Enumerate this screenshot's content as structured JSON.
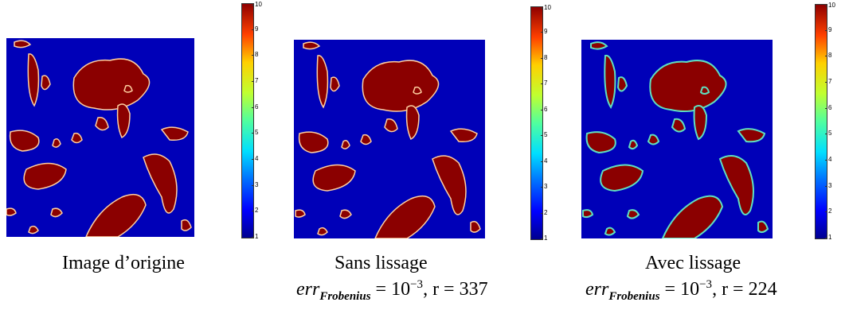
{
  "panels": [
    {
      "caption": "Image d’origine",
      "colorbar": {
        "min": 1,
        "max": 10,
        "ticks": [
          "1",
          "2",
          "3",
          "4",
          "5",
          "6",
          "7",
          "8",
          "9",
          "10"
        ]
      }
    },
    {
      "caption": "Sans lissage",
      "colorbar": {
        "min": 1,
        "max": 10,
        "ticks": [
          "1",
          "2",
          "3",
          "4",
          "5",
          "6",
          "7",
          "8",
          "9",
          "10"
        ]
      },
      "formula": {
        "err": "err",
        "sub": "Frobenius",
        "eq": " = 10",
        "exp": "−3",
        "rest": ", r = 337"
      }
    },
    {
      "caption": "Avec lissage",
      "colorbar": {
        "min": 1,
        "max": 10,
        "ticks": [
          "1",
          "2",
          "3",
          "4",
          "5",
          "6",
          "7",
          "8",
          "9",
          "10"
        ]
      },
      "formula": {
        "err": "err",
        "sub": "Frobenius",
        "eq": " = 10",
        "exp": "−3",
        "rest": ", r = 224"
      }
    }
  ],
  "colors": {
    "background": "#0000b8",
    "blob": "#8b0000",
    "edge": "#ffd0a0"
  }
}
